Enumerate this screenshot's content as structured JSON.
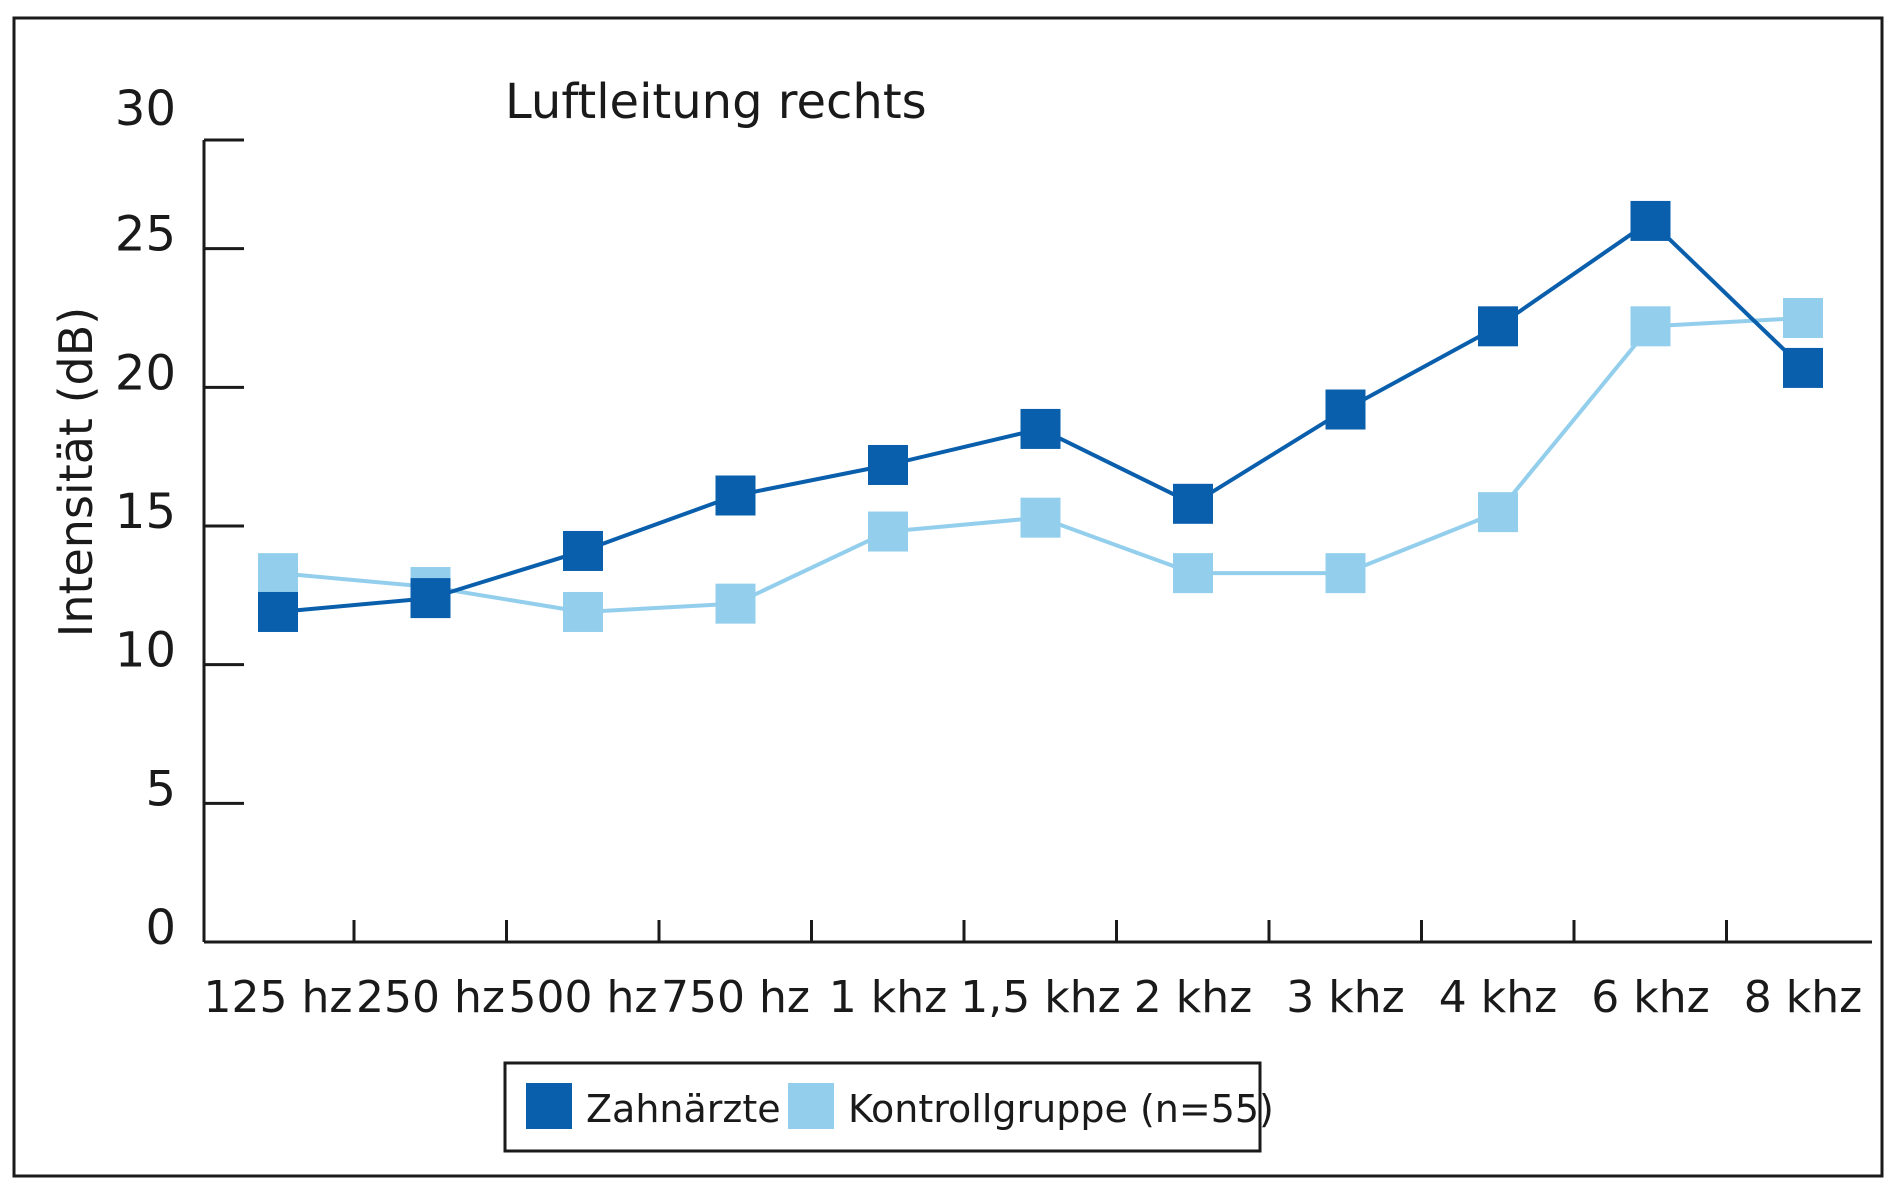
{
  "chart_data": {
    "type": "line",
    "title": "Luftleitung rechts",
    "xlabel": "",
    "ylabel": "Intensität (dB)",
    "ylim": [
      0,
      30
    ],
    "yticks": [
      "0",
      "5",
      "10",
      "15",
      "20",
      "25",
      "30"
    ],
    "categories": [
      "125 hz",
      "250 hz",
      "500 hz",
      "750 hz",
      "1 khz",
      "1,5 khz",
      "2 khz",
      "3 khz",
      "4 khz",
      "6 khz",
      "8 khz"
    ],
    "series": [
      {
        "name": "Zahnärzte",
        "color": "#0a5fad",
        "marker": "square",
        "values": [
          11.9,
          12.4,
          14.1,
          16.1,
          17.2,
          18.5,
          15.8,
          19.2,
          22.2,
          26.0,
          20.7
        ]
      },
      {
        "name": "Kontrollgruppe (n=55)",
        "color": "#93cfec",
        "marker": "square",
        "values": [
          13.3,
          12.8,
          11.9,
          12.2,
          14.8,
          15.3,
          13.3,
          13.3,
          15.5,
          22.2,
          22.5
        ]
      }
    ],
    "grid": false,
    "legend": "bottom-center"
  }
}
